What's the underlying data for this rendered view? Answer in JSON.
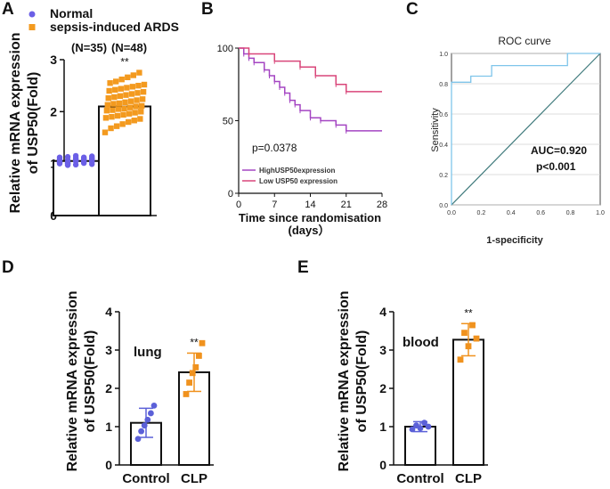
{
  "colors": {
    "normal": "#6b5fe6",
    "ards": "#f39a1f",
    "control": "#5b60d8",
    "clp": "#f0921e",
    "high_curve": "#a445c2",
    "low_curve": "#d9467a",
    "roc_curve": "#7fc5ea",
    "diagonal": "#3f7a7c"
  },
  "panel_labels": {
    "a": "A",
    "b": "B",
    "c": "C",
    "d": "D",
    "e": "E"
  },
  "chart_data": [
    {
      "id": "A",
      "type": "bar",
      "legend": [
        "Normal",
        "sepsis-induced ARDS"
      ],
      "categories": [
        "Normal",
        "sepsis-induced ARDS"
      ],
      "group_counts": [
        "(N=35)",
        "(N=48)"
      ],
      "values": [
        1.05,
        2.1
      ],
      "ylabel": [
        "Relative mRNA expression",
        "of USP50(Fold)"
      ],
      "ylim": [
        0,
        3
      ],
      "yticks": [
        "0",
        "1",
        "2",
        "3"
      ],
      "significance": "**",
      "points_normal": [
        1.0,
        1.02,
        1.05,
        1.08,
        1.1,
        1.12,
        1.0,
        0.98,
        1.04,
        1.06,
        1.09,
        1.13,
        1.15,
        1.01,
        0.99,
        1.03,
        1.07,
        1.11,
        1.05,
        1.08,
        1.02,
        0.97,
        1.06,
        1.1,
        1.14,
        1.04,
        1.0,
        1.08,
        1.12,
        1.03,
        1.07,
        0.98,
        1.05,
        1.09,
        1.11
      ],
      "points_ards": [
        1.6,
        1.68,
        1.72,
        1.76,
        1.8,
        1.83,
        1.86,
        1.88,
        1.9,
        1.92,
        1.94,
        1.96,
        1.98,
        2.0,
        2.02,
        2.03,
        2.05,
        2.06,
        2.08,
        2.1,
        2.11,
        2.13,
        2.15,
        2.16,
        2.18,
        2.2,
        2.22,
        2.24,
        2.26,
        2.28,
        2.3,
        2.32,
        2.34,
        2.36,
        2.38,
        2.4,
        2.42,
        2.44,
        2.46,
        2.48,
        2.5,
        2.52,
        2.55,
        2.58,
        2.62,
        2.66,
        2.7,
        2.75
      ]
    },
    {
      "id": "B",
      "type": "line",
      "subtype": "kaplan-meier",
      "xlabel": "Time since randomisation",
      "xlabel2": "(days）",
      "xticks": [
        0,
        7,
        14,
        21,
        28
      ],
      "yticks": [
        0,
        50,
        100
      ],
      "xlim": [
        0,
        28
      ],
      "ylim": [
        0,
        100
      ],
      "pvalue": "p=0.0378",
      "series": [
        {
          "name": "HighUSP50expression",
          "times": [
            0,
            1,
            2,
            3,
            5,
            6,
            7,
            8,
            9,
            10,
            11,
            12,
            14,
            16,
            19,
            21,
            28
          ],
          "values": [
            100,
            96,
            93,
            90,
            85,
            81,
            77,
            73,
            69,
            64,
            61,
            57,
            52,
            50,
            47,
            43,
            43
          ]
        },
        {
          "name": "Low USP50 expression",
          "times": [
            0,
            2,
            7,
            12,
            15,
            19,
            21,
            28
          ],
          "values": [
            100,
            96,
            91,
            87,
            81,
            75,
            70,
            70
          ]
        }
      ]
    },
    {
      "id": "C",
      "type": "line",
      "subtype": "roc",
      "title": "ROC curve",
      "xlabel": "1-specificity",
      "ylabel": "Sensitivity",
      "ticks": [
        "0.0",
        "0.2",
        "0.4",
        "0.6",
        "0.8",
        "1.0"
      ],
      "auc": "AUC=0.920",
      "pvalue": "p<0.001",
      "series": [
        {
          "name": "ROC",
          "x": [
            0,
            0,
            0.13,
            0.13,
            0.27,
            0.27,
            0.78,
            0.78,
            1.0
          ],
          "y": [
            0,
            0.81,
            0.81,
            0.85,
            0.85,
            0.92,
            0.92,
            1.0,
            1.0
          ]
        },
        {
          "name": "reference",
          "x": [
            0,
            1
          ],
          "y": [
            0,
            1
          ]
        }
      ]
    },
    {
      "id": "D",
      "type": "bar",
      "categories": [
        "Control",
        "CLP"
      ],
      "values": [
        1.1,
        2.42
      ],
      "sd": [
        0.38,
        0.5
      ],
      "ylabel": [
        "Relative mRNA expression",
        "of USP50(Fold)"
      ],
      "ylim": [
        0,
        4
      ],
      "yticks": [
        "0",
        "1",
        "2",
        "3",
        "4"
      ],
      "annotation": "lung",
      "significance": "**",
      "points_control": [
        0.68,
        0.88,
        1.03,
        1.18,
        1.35,
        1.55
      ],
      "points_clp": [
        1.85,
        2.15,
        2.4,
        2.55,
        2.85,
        3.18
      ]
    },
    {
      "id": "E",
      "type": "bar",
      "categories": [
        "Control",
        "CLP"
      ],
      "values": [
        1.0,
        3.27
      ],
      "sd": [
        0.13,
        0.42
      ],
      "ylabel": [
        "Relative mRNA expression",
        "of USP50(Fold)"
      ],
      "ylim": [
        0,
        4
      ],
      "yticks": [
        "0",
        "1",
        "2",
        "3",
        "4"
      ],
      "annotation": "blood",
      "significance": "**",
      "points_control": [
        0.93,
        0.96,
        1.0,
        1.03,
        1.1
      ],
      "points_clp": [
        2.75,
        3.1,
        3.3,
        3.45,
        3.65
      ]
    }
  ]
}
